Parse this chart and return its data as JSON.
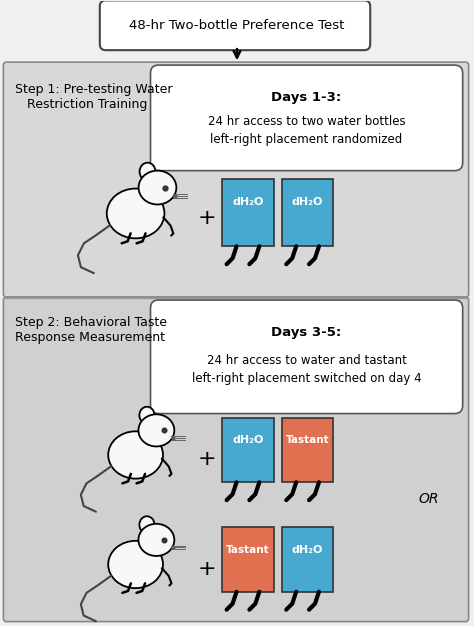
{
  "title_box_text": "48-hr Two-bottle Preference Test",
  "step1_label": "Step 1: Pre-testing Water\n   Restriction Training",
  "step1_box_line1": "Days 1-3:",
  "step1_box_line2": "24 hr access to two water bottles\nleft-right placement randomized",
  "step2_label": "Step 2: Behavioral Taste\nResponse Measurement",
  "step2_box_line1": "Days 3-5:",
  "step2_box_line2": "24 hr access to water and tastant\nleft-right placement switched on day 4",
  "blue_color": "#47A9D0",
  "orange_color": "#E07050",
  "panel_bg": "#CCCCCC",
  "panel2_bg": "#C0C0C0",
  "white": "#FFFFFF",
  "black": "#000000",
  "label_dh2o": "dH₂O",
  "label_tastant": "Tastant",
  "or_text": "OR"
}
